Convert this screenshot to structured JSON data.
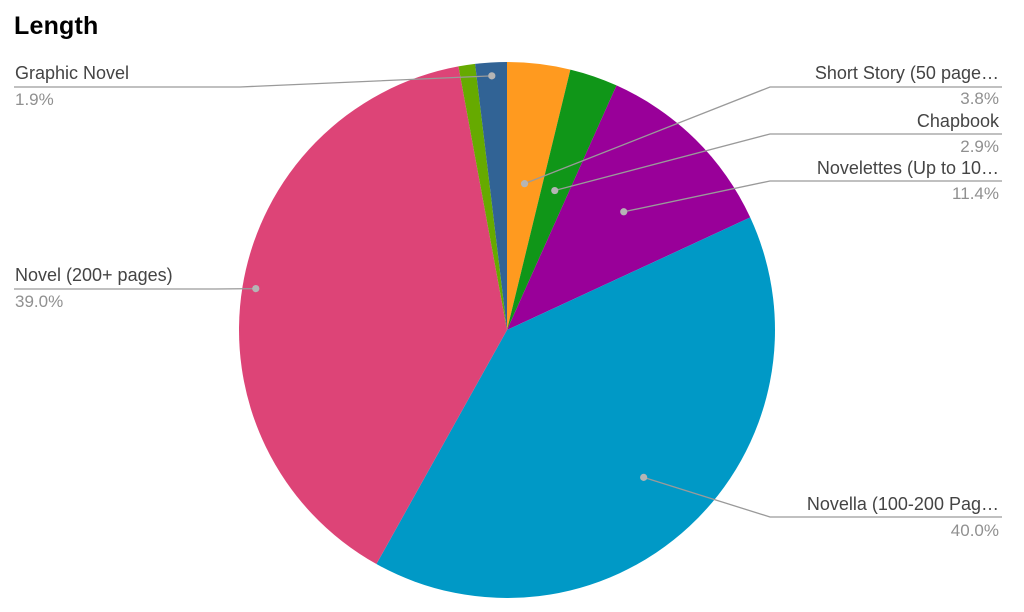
{
  "chart_data": {
    "type": "pie",
    "title": "Length",
    "slices": [
      {
        "label": "Short Story (50 page…",
        "value": 3.8,
        "display": "3.8%",
        "color": "#ff9a1f"
      },
      {
        "label": "Chapbook",
        "value": 2.9,
        "display": "2.9%",
        "color": "#109618"
      },
      {
        "label": "Novelettes (Up to 10…",
        "value": 11.4,
        "display": "11.4%",
        "color": "#990099"
      },
      {
        "label": "Novella (100-200 Pag…",
        "value": 40.0,
        "display": "40.0%",
        "color": "#0099c6"
      },
      {
        "label": "Novel (200+ pages)",
        "value": 39.0,
        "display": "39.0%",
        "color": "#dd4477"
      },
      {
        "label": "",
        "value": 1.0,
        "display": "",
        "color": "#66aa00"
      },
      {
        "label": "Graphic Novel",
        "value": 1.9,
        "display": "1.9%",
        "color": "#316395"
      }
    ],
    "start_angle_deg": 0,
    "direction": "clockwise",
    "legend": "labels with leader lines"
  }
}
